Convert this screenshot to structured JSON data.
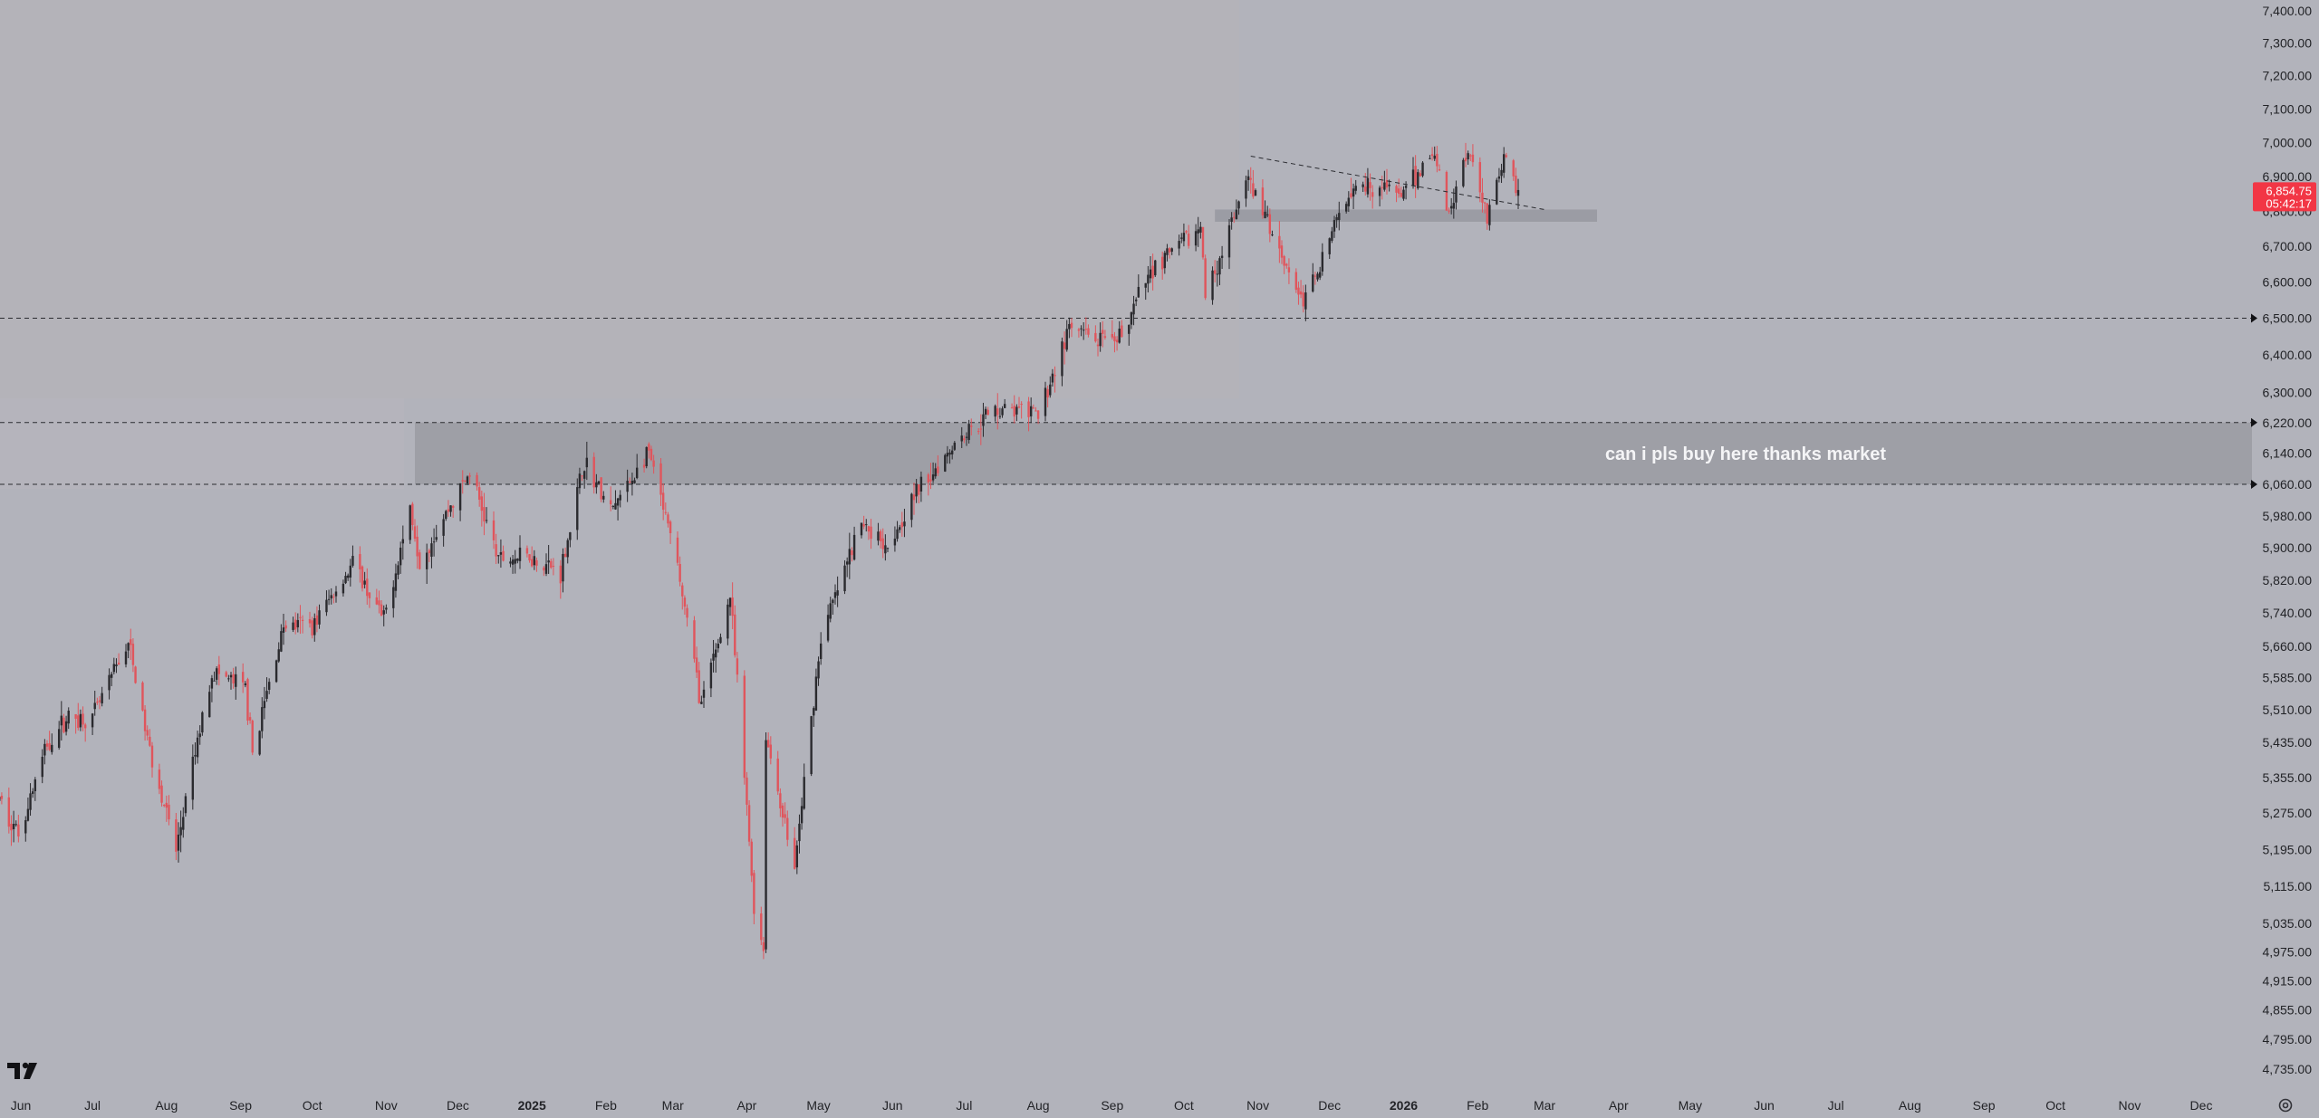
{
  "chart_data": {
    "type": "candlestick",
    "symbol_note": "",
    "y_axis": {
      "side": "right",
      "ticks": [
        "7,400.00",
        "7,300.00",
        "7,200.00",
        "7,100.00",
        "7,000.00",
        "6,900.00",
        "6,800.00",
        "6,700.00",
        "6,600.00",
        "6,500.00",
        "6,400.00",
        "6,300.00",
        "6,220.00",
        "6,140.00",
        "6,060.00",
        "5,980.00",
        "5,900.00",
        "5,820.00",
        "5,740.00",
        "5,660.00",
        "5,585.00",
        "5,510.00",
        "5,435.00",
        "5,355.00",
        "5,275.00",
        "5,195.00",
        "5,115.00",
        "5,035.00",
        "4,975.00",
        "4,915.00",
        "4,855.00",
        "4,795.00",
        "4,735.00"
      ],
      "range": [
        4700,
        7420
      ],
      "scale": "log"
    },
    "x_axis": {
      "ticks": [
        {
          "label": "Jun",
          "date": "2024-06-01",
          "bold": false
        },
        {
          "label": "Jul",
          "date": "2024-07-01",
          "bold": false
        },
        {
          "label": "Aug",
          "date": "2024-08-01",
          "bold": false
        },
        {
          "label": "Sep",
          "date": "2024-09-01",
          "bold": false
        },
        {
          "label": "Oct",
          "date": "2024-10-01",
          "bold": false
        },
        {
          "label": "Nov",
          "date": "2024-11-01",
          "bold": false
        },
        {
          "label": "Dec",
          "date": "2024-12-01",
          "bold": false
        },
        {
          "label": "2025",
          "date": "2025-01-01",
          "bold": true
        },
        {
          "label": "Feb",
          "date": "2025-02-01",
          "bold": false
        },
        {
          "label": "Mar",
          "date": "2025-03-01",
          "bold": false
        },
        {
          "label": "Apr",
          "date": "2025-04-01",
          "bold": false
        },
        {
          "label": "May",
          "date": "2025-05-01",
          "bold": false
        },
        {
          "label": "Jun",
          "date": "2025-06-01",
          "bold": false
        },
        {
          "label": "Jul",
          "date": "2025-07-01",
          "bold": false
        },
        {
          "label": "Aug",
          "date": "2025-08-01",
          "bold": false
        },
        {
          "label": "Sep",
          "date": "2025-09-01",
          "bold": false
        },
        {
          "label": "Oct",
          "date": "2025-10-01",
          "bold": false
        },
        {
          "label": "Nov",
          "date": "2025-11-01",
          "bold": false
        },
        {
          "label": "Dec",
          "date": "2025-12-01",
          "bold": false
        },
        {
          "label": "2026",
          "date": "2026-01-01",
          "bold": true
        },
        {
          "label": "Feb",
          "date": "2026-02-01",
          "bold": false
        },
        {
          "label": "Mar",
          "date": "2026-03-01",
          "bold": false
        },
        {
          "label": "Apr",
          "date": "2026-04-01",
          "bold": false
        },
        {
          "label": "May",
          "date": "2026-05-01",
          "bold": false
        },
        {
          "label": "Jun",
          "date": "2026-06-01",
          "bold": false
        },
        {
          "label": "Jul",
          "date": "2026-07-01",
          "bold": false
        },
        {
          "label": "Aug",
          "date": "2026-08-01",
          "bold": false
        },
        {
          "label": "Sep",
          "date": "2026-09-01",
          "bold": false
        },
        {
          "label": "Oct",
          "date": "2026-10-01",
          "bold": false
        },
        {
          "label": "Nov",
          "date": "2026-11-01",
          "bold": false
        },
        {
          "label": "Dec",
          "date": "2026-12-01",
          "bold": false
        }
      ]
    },
    "price_path": [
      {
        "date": "2024-05-22",
        "close": 5310
      },
      {
        "date": "2024-05-31",
        "close": 5230
      },
      {
        "date": "2024-06-12",
        "close": 5430
      },
      {
        "date": "2024-06-20",
        "close": 5490
      },
      {
        "date": "2024-07-01",
        "close": 5490
      },
      {
        "date": "2024-07-16",
        "close": 5670
      },
      {
        "date": "2024-07-24",
        "close": 5440
      },
      {
        "date": "2024-08-05",
        "close": 5190
      },
      {
        "date": "2024-08-20",
        "close": 5600
      },
      {
        "date": "2024-09-03",
        "close": 5560
      },
      {
        "date": "2024-09-06",
        "close": 5410
      },
      {
        "date": "2024-09-19",
        "close": 5710
      },
      {
        "date": "2024-10-01",
        "close": 5710
      },
      {
        "date": "2024-10-18",
        "close": 5860
      },
      {
        "date": "2024-10-31",
        "close": 5720
      },
      {
        "date": "2024-11-11",
        "close": 6000
      },
      {
        "date": "2024-11-15",
        "close": 5870
      },
      {
        "date": "2024-12-06",
        "close": 6090
      },
      {
        "date": "2024-12-18",
        "close": 5870
      },
      {
        "date": "2024-12-31",
        "close": 5880
      },
      {
        "date": "2025-01-13",
        "close": 5840
      },
      {
        "date": "2025-01-23",
        "close": 6120
      },
      {
        "date": "2025-02-03",
        "close": 5990
      },
      {
        "date": "2025-02-19",
        "close": 6140
      },
      {
        "date": "2025-03-03",
        "close": 5850
      },
      {
        "date": "2025-03-13",
        "close": 5520
      },
      {
        "date": "2025-03-25",
        "close": 5780
      },
      {
        "date": "2025-04-04",
        "close": 5070
      },
      {
        "date": "2025-04-08",
        "close": 4980
      },
      {
        "date": "2025-04-09",
        "close": 5450
      },
      {
        "date": "2025-04-21",
        "close": 5150
      },
      {
        "date": "2025-05-02",
        "close": 5680
      },
      {
        "date": "2025-05-19",
        "close": 5960
      },
      {
        "date": "2025-05-30",
        "close": 5910
      },
      {
        "date": "2025-06-10",
        "close": 6030
      },
      {
        "date": "2025-06-27",
        "close": 6170
      },
      {
        "date": "2025-07-15",
        "close": 6260
      },
      {
        "date": "2025-08-01",
        "close": 6240
      },
      {
        "date": "2025-08-14",
        "close": 6470
      },
      {
        "date": "2025-09-02",
        "close": 6420
      },
      {
        "date": "2025-09-18",
        "close": 6640
      },
      {
        "date": "2025-10-08",
        "close": 6750
      },
      {
        "date": "2025-10-10",
        "close": 6560
      },
      {
        "date": "2025-10-28",
        "close": 6890
      },
      {
        "date": "2025-11-20",
        "close": 6540
      },
      {
        "date": "2025-12-11",
        "close": 6890
      },
      {
        "date": "2026-01-02",
        "close": 6850
      },
      {
        "date": "2026-01-13",
        "close": 6980
      },
      {
        "date": "2026-01-20",
        "close": 6800
      },
      {
        "date": "2026-01-28",
        "close": 6990
      },
      {
        "date": "2026-02-05",
        "close": 6790
      },
      {
        "date": "2026-02-12",
        "close": 6950
      },
      {
        "date": "2026-02-18",
        "close": 6854.75
      }
    ],
    "last_price": {
      "price_label": "6,854.75",
      "countdown_label": "05:42:17",
      "price": 6854.75
    },
    "horizontal_lines": [
      {
        "price": 6500,
        "style": "dashed"
      },
      {
        "price": 6220,
        "style": "dashed"
      },
      {
        "price": 6060,
        "style": "dashed"
      }
    ],
    "zones": [
      {
        "name": "main-zone",
        "price_from": 6060,
        "price_to": 6220,
        "date_from": "2024-11-13",
        "label": "can i pls buy here thanks market"
      },
      {
        "name": "small-zone",
        "price_from": 6770,
        "price_to": 6805,
        "date_from": "2025-10-14",
        "date_to": "2026-03-23"
      }
    ],
    "trendline": {
      "from": {
        "date": "2025-10-29",
        "price": 6960
      },
      "to": {
        "date": "2026-03-01",
        "price": 6805
      }
    },
    "colors": {
      "background": "#b2b3bb",
      "up_candle": "#2a2a2e",
      "down_candle": "#e0555c",
      "zone_fill": "#9a9ba2",
      "price_tag": "#f23645",
      "axis_text": "#222327"
    }
  }
}
